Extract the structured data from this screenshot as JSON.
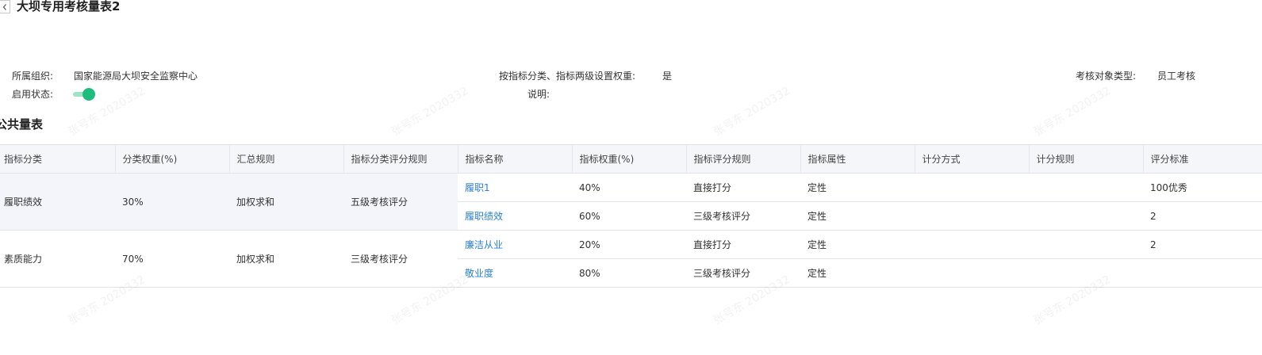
{
  "header": {
    "title": "大坝专用考核量表2"
  },
  "info": {
    "org_label": "所属组织:",
    "org_value": "国家能源局大坝安全监察中心",
    "weight_label": "按指标分类、指标两级设置权重:",
    "weight_value": "是",
    "target_label": "考核对象类型:",
    "target_value": "员工考核",
    "status_label": "启用状态:",
    "status_on": true,
    "note_label": "说明:"
  },
  "section": {
    "title": "公共量表"
  },
  "table": {
    "columns": [
      "指标分类",
      "分类权重(%)",
      "汇总规则",
      "指标分类评分规则",
      "指标名称",
      "指标权重(%)",
      "指标评分规则",
      "指标属性",
      "计分方式",
      "计分规则",
      "评分标准"
    ],
    "groups": [
      {
        "category": "履职绩效",
        "weight": "30%",
        "rule": "加权求和",
        "scoring": "五级考核评分",
        "rows": [
          {
            "name": "履职1",
            "weight": "40%",
            "rule": "直接打分",
            "attr": "定性",
            "method": "",
            "calc": "",
            "standard": "100优秀"
          },
          {
            "name": "履职绩效",
            "weight": "60%",
            "rule": "三级考核评分",
            "attr": "定性",
            "method": "",
            "calc": "",
            "standard": "2"
          }
        ]
      },
      {
        "category": "素质能力",
        "weight": "70%",
        "rule": "加权求和",
        "scoring": "三级考核评分",
        "rows": [
          {
            "name": "廉洁从业",
            "weight": "20%",
            "rule": "直接打分",
            "attr": "定性",
            "method": "",
            "calc": "",
            "standard": "2"
          },
          {
            "name": "敬业度",
            "weight": "80%",
            "rule": "三级考核评分",
            "attr": "定性",
            "method": "",
            "calc": "",
            "standard": ""
          }
        ]
      }
    ]
  },
  "watermark": {
    "text": "张号东 2020332",
    "color": "#000000"
  },
  "colors": {
    "link": "#2b7fd9",
    "toggle": "#1ebd7d",
    "header_bg": "#f4f6f9"
  }
}
